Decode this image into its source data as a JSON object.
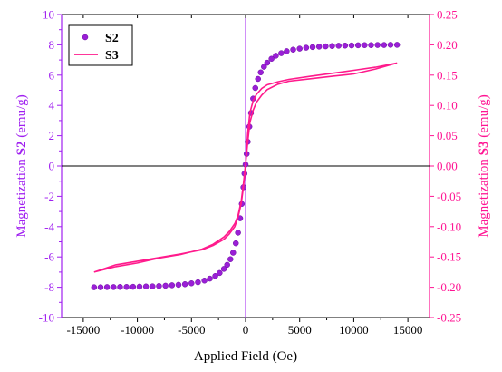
{
  "chart_data": {
    "type": "scatter",
    "xlabel": "Applied Field (Oe)",
    "ylabel_left": {
      "prefix": "Magnetization ",
      "series": "S2",
      "unit": " (emu/g)"
    },
    "ylabel_right": {
      "prefix": "Magnetization ",
      "series": "S3",
      "unit": " (emu/g)"
    },
    "xlim": [
      -17000,
      17000
    ],
    "xticks": [
      -15000,
      -10000,
      -5000,
      0,
      5000,
      10000,
      15000
    ],
    "ylim_left": [
      -10,
      10
    ],
    "yticks_left": [
      -10,
      -8,
      -6,
      -4,
      -2,
      0,
      2,
      4,
      6,
      8,
      10
    ],
    "ylim_right": [
      -0.25,
      0.25
    ],
    "yticks_right": [
      "-0.25",
      "-0.20",
      "-0.15",
      "-0.10",
      "-0.05",
      "0.00",
      "0.05",
      "0.10",
      "0.15",
      "0.20",
      "0.25"
    ],
    "legend_position": "top-left",
    "colors": {
      "S2": "#9a1fd6",
      "S3": "#ff1a8c",
      "left_axis": "#a020f0",
      "right_axis": "#ff1493"
    },
    "series": [
      {
        "name": "S2",
        "axis": "left",
        "style": "markers",
        "x": [
          -14000,
          -13400,
          -12800,
          -12200,
          -11600,
          -11000,
          -10400,
          -9800,
          -9200,
          -8600,
          -8000,
          -7400,
          -6800,
          -6200,
          -5600,
          -5000,
          -4400,
          -3800,
          -3300,
          -2800,
          -2400,
          -2000,
          -1700,
          -1400,
          -1150,
          -900,
          -700,
          -500,
          -350,
          -200,
          -100,
          0,
          100,
          200,
          350,
          500,
          700,
          900,
          1150,
          1400,
          1700,
          2000,
          2400,
          2800,
          3300,
          3800,
          4400,
          5000,
          5600,
          6200,
          6800,
          7400,
          8000,
          8600,
          9200,
          9800,
          10400,
          11000,
          11600,
          12200,
          12800,
          13400,
          14000
        ],
        "y": [
          -8.0,
          -8.0,
          -7.99,
          -7.99,
          -7.98,
          -7.98,
          -7.97,
          -7.96,
          -7.95,
          -7.94,
          -7.92,
          -7.9,
          -7.87,
          -7.84,
          -7.8,
          -7.74,
          -7.67,
          -7.56,
          -7.43,
          -7.26,
          -7.06,
          -6.79,
          -6.52,
          -6.15,
          -5.72,
          -5.1,
          -4.4,
          -3.45,
          -2.5,
          -1.4,
          -0.5,
          0.1,
          0.8,
          1.6,
          2.6,
          3.5,
          4.45,
          5.15,
          5.75,
          6.18,
          6.55,
          6.82,
          7.08,
          7.28,
          7.45,
          7.58,
          7.68,
          7.75,
          7.81,
          7.85,
          7.88,
          7.9,
          7.92,
          7.94,
          7.95,
          7.96,
          7.97,
          7.98,
          7.98,
          7.99,
          7.99,
          8.0,
          8.0
        ]
      },
      {
        "name": "S3",
        "axis": "right",
        "style": "line",
        "x": [
          -14000,
          -12000,
          -10000,
          -8000,
          -6000,
          -4000,
          -3000,
          -2000,
          -1500,
          -1000,
          -700,
          -400,
          -200,
          0,
          200,
          400,
          700,
          1000,
          1500,
          2000,
          3000,
          4000,
          6000,
          8000,
          10000,
          12000,
          14000,
          12000,
          10000,
          8000,
          6000,
          4000,
          3000,
          2000,
          1500,
          1000,
          700,
          400,
          200,
          0,
          -200,
          -400,
          -700,
          -1000,
          -1500,
          -2000,
          -3000,
          -4000,
          -6000,
          -8000,
          -10000,
          -12000,
          -14000
        ],
        "y": [
          -0.175,
          -0.166,
          -0.16,
          -0.152,
          -0.146,
          -0.137,
          -0.129,
          -0.117,
          -0.108,
          -0.095,
          -0.082,
          -0.058,
          -0.03,
          0.003,
          0.04,
          0.072,
          0.092,
          0.105,
          0.117,
          0.126,
          0.135,
          0.14,
          0.144,
          0.148,
          0.152,
          0.16,
          0.17,
          0.163,
          0.158,
          0.153,
          0.148,
          0.143,
          0.139,
          0.134,
          0.128,
          0.118,
          0.108,
          0.088,
          0.055,
          0.0,
          -0.035,
          -0.062,
          -0.085,
          -0.1,
          -0.112,
          -0.121,
          -0.131,
          -0.138,
          -0.145,
          -0.151,
          -0.157,
          -0.163,
          -0.175
        ]
      }
    ]
  }
}
